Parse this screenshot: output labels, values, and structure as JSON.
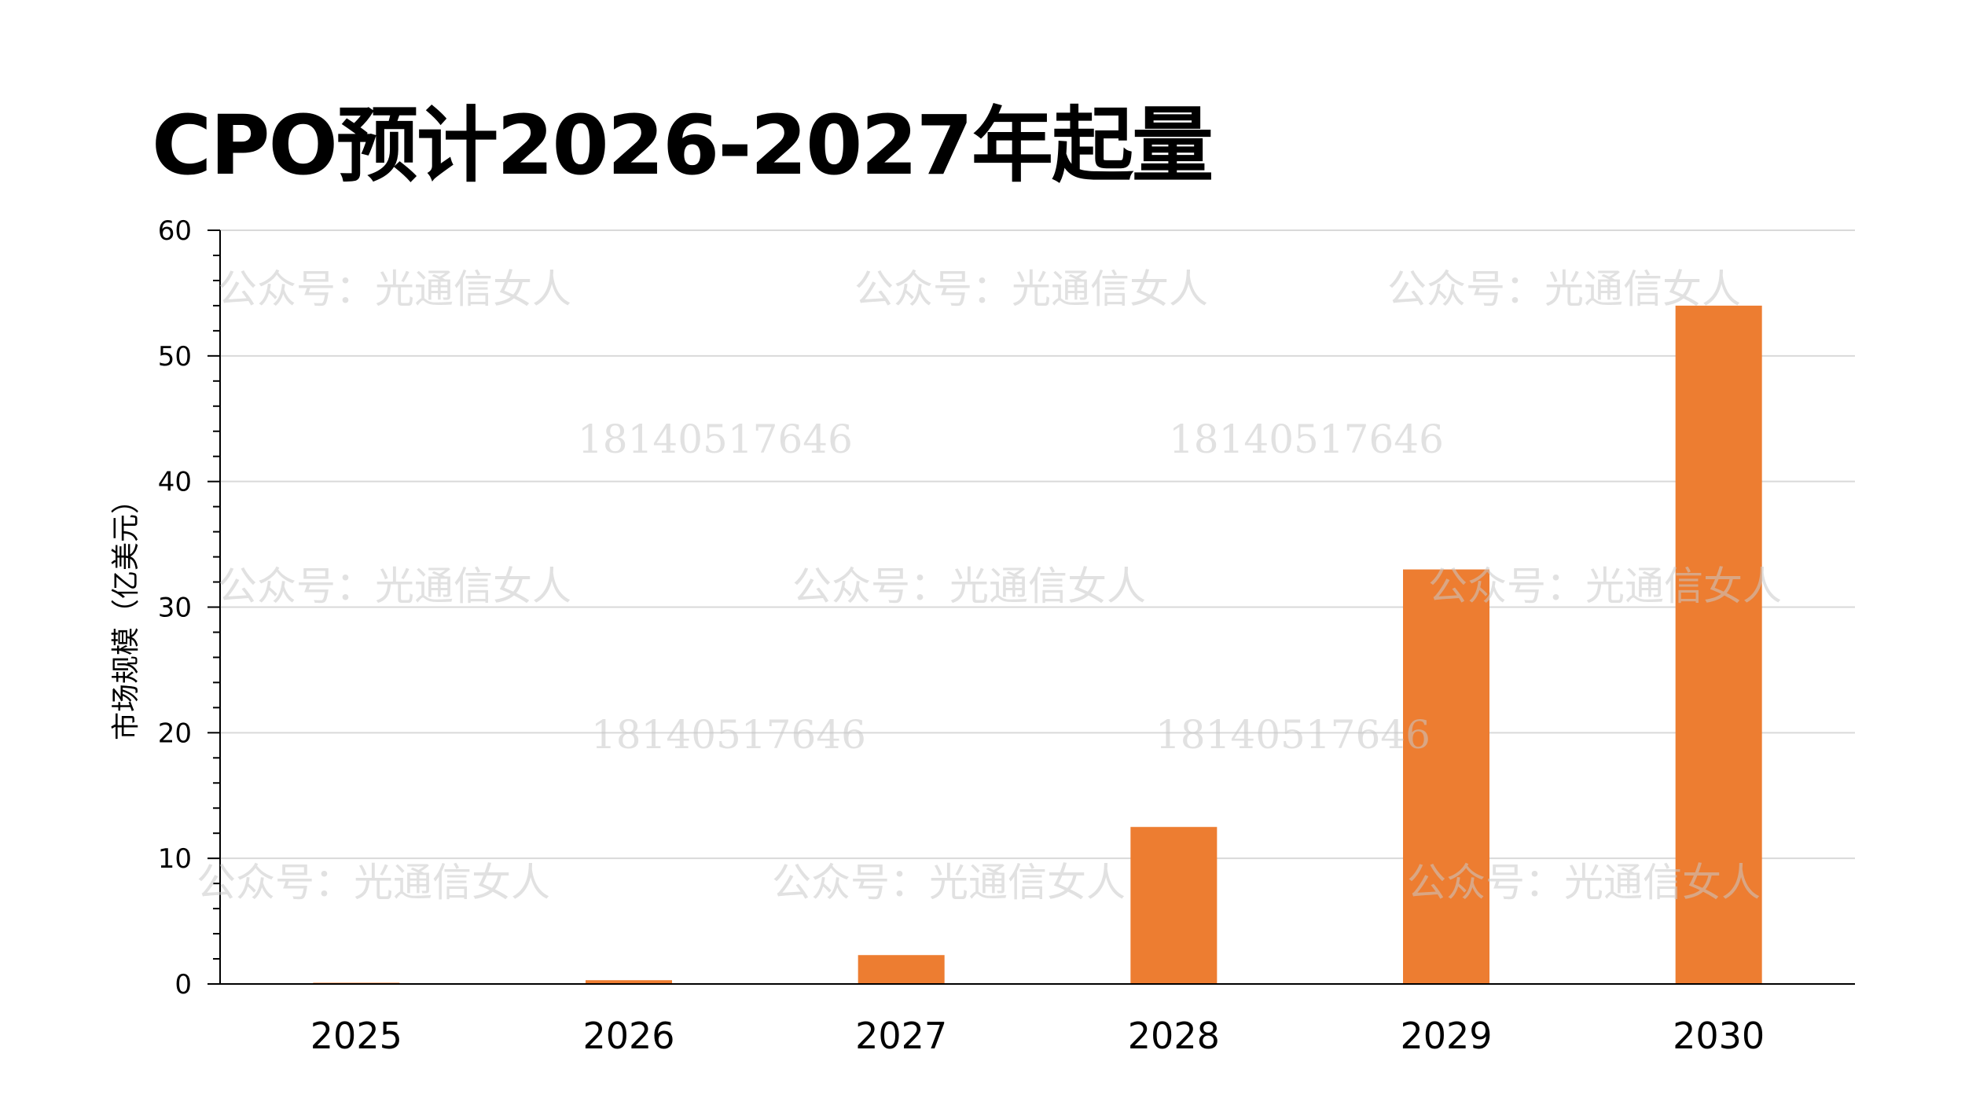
{
  "title": "CPO预计2026-2027年起量",
  "chart_data": {
    "type": "bar",
    "categories": [
      "2025",
      "2026",
      "2027",
      "2028",
      "2029",
      "2030"
    ],
    "series": [
      {
        "values": [
          0.1,
          0.3,
          2.3,
          12.5,
          33,
          54
        ],
        "color": "#ED7D31"
      }
    ],
    "title": "CPO预计2026-2027年起量",
    "xlabel": "",
    "ylabel": "市场规模（亿美元）",
    "ylim": [
      0,
      60
    ],
    "yticks": [
      0,
      10,
      20,
      30,
      40,
      50,
      60
    ],
    "grid": true,
    "legend": "none"
  },
  "watermarks": {
    "account": "公众号：光通信女人",
    "phone": "18140517646"
  },
  "colors": {
    "bar": "#ED7D31",
    "grid": "#d9d9d9",
    "axis": "#000000"
  }
}
